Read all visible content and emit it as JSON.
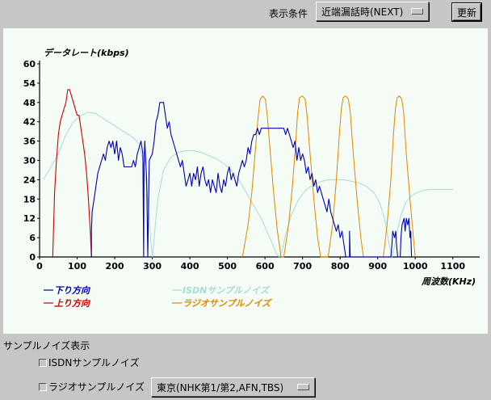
{
  "header": {
    "condition_label": "表示条件",
    "condition_value": "近端漏話時(NEXT)",
    "refresh_label": "更新"
  },
  "sample_noise": {
    "section_label": "サンプルノイズ表示",
    "isdn_label": "ISDNサンプルノイズ",
    "radio_label": "ラジオサンプルノイズ",
    "region_value": "東京(NHK第1/第2,AFN,TBS)"
  },
  "colors": {
    "downlink": "#0000b0",
    "uplink": "#d00000",
    "isdn": "#a8dcd8",
    "radio": "#e08800"
  },
  "chart_data": {
    "type": "line",
    "title": "",
    "ylabel": "データレート(kbps)",
    "xlabel": "周波数(KHz)",
    "xlim": [
      0,
      1150
    ],
    "ylim": [
      0,
      60
    ],
    "xticks": [
      0,
      100,
      200,
      300,
      400,
      500,
      600,
      700,
      800,
      900,
      1000,
      1100
    ],
    "yticks": [
      0,
      6,
      12,
      18,
      24,
      30,
      36,
      42,
      48,
      54,
      60
    ],
    "legend": [
      "下り方向",
      "上り方向",
      "ISDNサンプルノイズ",
      "ラジオサンプルノイズ"
    ],
    "series": [
      {
        "name": "下り方向",
        "color": "#0000b0",
        "points": [
          [
            138,
            0
          ],
          [
            138,
            8
          ],
          [
            140,
            14
          ],
          [
            145,
            18
          ],
          [
            150,
            22
          ],
          [
            155,
            26
          ],
          [
            160,
            28
          ],
          [
            165,
            30
          ],
          [
            170,
            32
          ],
          [
            175,
            30
          ],
          [
            180,
            34
          ],
          [
            185,
            36
          ],
          [
            190,
            34
          ],
          [
            195,
            36
          ],
          [
            200,
            32
          ],
          [
            205,
            36
          ],
          [
            210,
            30
          ],
          [
            215,
            34
          ],
          [
            220,
            32
          ],
          [
            225,
            28
          ],
          [
            235,
            28
          ],
          [
            245,
            28
          ],
          [
            250,
            30
          ],
          [
            255,
            28
          ],
          [
            260,
            32
          ],
          [
            265,
            34
          ],
          [
            270,
            36
          ],
          [
            275,
            32
          ],
          [
            277,
            0
          ],
          [
            278,
            28
          ],
          [
            280,
            36
          ],
          [
            285,
            24
          ],
          [
            288,
            0
          ],
          [
            292,
            30
          ],
          [
            300,
            32
          ],
          [
            305,
            36
          ],
          [
            310,
            42
          ],
          [
            315,
            44
          ],
          [
            320,
            48
          ],
          [
            330,
            48
          ],
          [
            335,
            44
          ],
          [
            340,
            40
          ],
          [
            345,
            42
          ],
          [
            350,
            38
          ],
          [
            355,
            36
          ],
          [
            360,
            34
          ],
          [
            365,
            32
          ],
          [
            370,
            30
          ],
          [
            375,
            28
          ],
          [
            380,
            30
          ],
          [
            385,
            26
          ],
          [
            390,
            22
          ],
          [
            395,
            24
          ],
          [
            400,
            26
          ],
          [
            405,
            22
          ],
          [
            410,
            26
          ],
          [
            415,
            24
          ],
          [
            420,
            28
          ],
          [
            425,
            22
          ],
          [
            430,
            26
          ],
          [
            435,
            28
          ],
          [
            440,
            24
          ],
          [
            445,
            22
          ],
          [
            450,
            24
          ],
          [
            455,
            20
          ],
          [
            460,
            24
          ],
          [
            465,
            22
          ],
          [
            470,
            20
          ],
          [
            475,
            26
          ],
          [
            480,
            22
          ],
          [
            485,
            20
          ],
          [
            490,
            24
          ],
          [
            495,
            22
          ],
          [
            500,
            26
          ],
          [
            505,
            28
          ],
          [
            510,
            24
          ],
          [
            515,
            26
          ],
          [
            520,
            24
          ],
          [
            525,
            22
          ],
          [
            530,
            26
          ],
          [
            535,
            28
          ],
          [
            540,
            30
          ],
          [
            545,
            28
          ],
          [
            550,
            30
          ],
          [
            555,
            34
          ],
          [
            560,
            32
          ],
          [
            565,
            36
          ],
          [
            570,
            38
          ],
          [
            575,
            38
          ],
          [
            580,
            40
          ],
          [
            585,
            38
          ],
          [
            590,
            40
          ],
          [
            600,
            40
          ],
          [
            610,
            40
          ],
          [
            620,
            40
          ],
          [
            630,
            40
          ],
          [
            645,
            40
          ],
          [
            650,
            40
          ],
          [
            655,
            38
          ],
          [
            660,
            40
          ],
          [
            665,
            38
          ],
          [
            670,
            36
          ],
          [
            675,
            34
          ],
          [
            680,
            36
          ],
          [
            685,
            30
          ],
          [
            690,
            34
          ],
          [
            695,
            30
          ],
          [
            700,
            32
          ],
          [
            705,
            30
          ],
          [
            710,
            26
          ],
          [
            715,
            28
          ],
          [
            720,
            24
          ],
          [
            725,
            26
          ],
          [
            730,
            22
          ],
          [
            735,
            24
          ],
          [
            740,
            20
          ],
          [
            745,
            22
          ],
          [
            750,
            20
          ],
          [
            755,
            18
          ],
          [
            760,
            16
          ],
          [
            765,
            14
          ],
          [
            770,
            18
          ],
          [
            775,
            14
          ],
          [
            780,
            12
          ],
          [
            785,
            10
          ],
          [
            790,
            8
          ],
          [
            795,
            10
          ],
          [
            800,
            6
          ],
          [
            805,
            8
          ],
          [
            810,
            4
          ],
          [
            815,
            0
          ],
          [
            825,
            0
          ],
          [
            825,
            8
          ],
          [
            827,
            0
          ],
          [
            935,
            0
          ],
          [
            938,
            4
          ],
          [
            940,
            8
          ],
          [
            945,
            6
          ],
          [
            948,
            8
          ],
          [
            950,
            4
          ],
          [
            953,
            0
          ],
          [
            960,
            0
          ],
          [
            962,
            6
          ],
          [
            965,
            10
          ],
          [
            970,
            12
          ],
          [
            973,
            8
          ],
          [
            976,
            12
          ],
          [
            980,
            10
          ],
          [
            983,
            12
          ],
          [
            986,
            6
          ],
          [
            988,
            8
          ],
          [
            990,
            0
          ]
        ]
      },
      {
        "name": "上り方向",
        "color": "#d00000",
        "points": [
          [
            35,
            0
          ],
          [
            37,
            8
          ],
          [
            40,
            20
          ],
          [
            45,
            30
          ],
          [
            50,
            38
          ],
          [
            55,
            42
          ],
          [
            60,
            44
          ],
          [
            65,
            46
          ],
          [
            70,
            48
          ],
          [
            75,
            52
          ],
          [
            80,
            52
          ],
          [
            85,
            50
          ],
          [
            90,
            48
          ],
          [
            95,
            46
          ],
          [
            100,
            44
          ],
          [
            105,
            44
          ],
          [
            110,
            40
          ],
          [
            115,
            36
          ],
          [
            120,
            32
          ],
          [
            125,
            26
          ],
          [
            130,
            18
          ],
          [
            135,
            8
          ],
          [
            138,
            0
          ]
        ]
      },
      {
        "name": "ISDNサンプルノイズ",
        "color": "#a8dcd8",
        "points": [
          [
            10,
            24
          ],
          [
            30,
            28
          ],
          [
            50,
            32
          ],
          [
            70,
            38
          ],
          [
            90,
            42
          ],
          [
            110,
            44
          ],
          [
            130,
            45
          ],
          [
            150,
            44.5
          ],
          [
            170,
            43
          ],
          [
            190,
            41.5
          ],
          [
            210,
            40
          ],
          [
            230,
            38.5
          ],
          [
            250,
            37
          ],
          [
            265,
            35
          ],
          [
            275,
            30
          ],
          [
            285,
            22
          ],
          [
            292,
            12
          ],
          [
            296,
            5
          ],
          [
            300,
            0
          ],
          [
            304,
            4
          ],
          [
            308,
            10
          ],
          [
            315,
            18
          ],
          [
            330,
            27
          ],
          [
            350,
            31
          ],
          [
            370,
            32.5
          ],
          [
            390,
            33
          ],
          [
            410,
            33
          ],
          [
            430,
            32.5
          ],
          [
            450,
            31.5
          ],
          [
            470,
            30.5
          ],
          [
            490,
            29
          ],
          [
            510,
            27
          ],
          [
            530,
            24
          ],
          [
            550,
            20
          ],
          [
            570,
            16
          ],
          [
            590,
            12
          ],
          [
            605,
            8
          ],
          [
            620,
            4
          ],
          [
            630,
            1
          ],
          [
            638,
            0
          ],
          [
            646,
            2
          ],
          [
            655,
            7
          ],
          [
            670,
            13
          ],
          [
            690,
            18
          ],
          [
            710,
            21
          ],
          [
            730,
            22.5
          ],
          [
            750,
            23.5
          ],
          [
            770,
            24
          ],
          [
            790,
            24
          ],
          [
            810,
            24
          ],
          [
            830,
            23.5
          ],
          [
            850,
            23
          ],
          [
            870,
            22
          ],
          [
            890,
            20
          ],
          [
            905,
            17
          ],
          [
            918,
            12
          ],
          [
            926,
            7
          ],
          [
            932,
            3
          ],
          [
            938,
            0
          ],
          [
            944,
            3
          ],
          [
            952,
            8
          ],
          [
            962,
            13
          ],
          [
            975,
            17
          ],
          [
            990,
            19
          ],
          [
            1005,
            20
          ],
          [
            1025,
            20.8
          ],
          [
            1045,
            21
          ],
          [
            1065,
            21
          ],
          [
            1085,
            21
          ],
          [
            1100,
            21
          ]
        ]
      },
      {
        "name": "ラジオサンプルノイズ",
        "color": "#e08800",
        "points": [
          [
            540,
            0
          ],
          [
            555,
            10
          ],
          [
            565,
            20
          ],
          [
            575,
            34
          ],
          [
            582,
            44
          ],
          [
            587,
            49
          ],
          [
            594,
            50
          ],
          [
            601,
            49
          ],
          [
            606,
            44
          ],
          [
            613,
            34
          ],
          [
            623,
            20
          ],
          [
            633,
            8
          ],
          [
            643,
            0
          ],
          [
            650,
            0
          ],
          [
            663,
            10
          ],
          [
            673,
            22
          ],
          [
            682,
            36
          ],
          [
            687,
            45
          ],
          [
            692,
            49.5
          ],
          [
            700,
            50
          ],
          [
            707,
            49
          ],
          [
            712,
            44
          ],
          [
            720,
            32
          ],
          [
            730,
            18
          ],
          [
            740,
            6
          ],
          [
            748,
            0
          ],
          [
            768,
            0
          ],
          [
            780,
            10
          ],
          [
            790,
            24
          ],
          [
            798,
            38
          ],
          [
            803,
            46
          ],
          [
            808,
            49.5
          ],
          [
            815,
            50
          ],
          [
            822,
            49
          ],
          [
            827,
            45
          ],
          [
            835,
            32
          ],
          [
            845,
            18
          ],
          [
            855,
            6
          ],
          [
            862,
            0
          ],
          [
            915,
            0
          ],
          [
            925,
            10
          ],
          [
            935,
            24
          ],
          [
            942,
            38
          ],
          [
            947,
            46
          ],
          [
            952,
            49.5
          ],
          [
            958,
            50
          ],
          [
            964,
            49
          ],
          [
            969,
            45
          ],
          [
            976,
            32
          ],
          [
            986,
            18
          ],
          [
            995,
            6
          ],
          [
            1000,
            0
          ]
        ]
      }
    ]
  }
}
